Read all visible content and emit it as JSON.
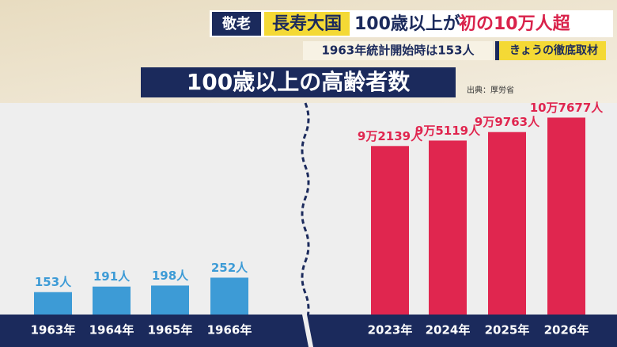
{
  "header": {
    "tag": "敬老",
    "headline_1": "長寿大国",
    "headline_2": "100歳以上が",
    "headline_3": "初の10万人超",
    "subhead": "1963年統計開始時は153人",
    "segment": "きょうの徹底取材"
  },
  "chart_data": [
    {
      "type": "bar",
      "title": "100歳以上の高齢者数",
      "source": "出典：厚労省",
      "categories": [
        "1963年",
        "1964年",
        "1965年",
        "1966年"
      ],
      "values": [
        153,
        191,
        198,
        252
      ],
      "value_labels": [
        "153人",
        "191人",
        "198人",
        "252人"
      ],
      "color": "#3d9bd6",
      "ylim": [
        0,
        1500
      ]
    },
    {
      "type": "bar",
      "categories": [
        "2023年",
        "2024年",
        "2025年",
        "2026年"
      ],
      "values": [
        92139,
        95119,
        99763,
        107677
      ],
      "value_labels": [
        "9万2139人",
        "9万5119人",
        "9万9763人",
        "10万7677人"
      ],
      "color": "#e0264f",
      "ylim": [
        0,
        120000
      ]
    }
  ]
}
